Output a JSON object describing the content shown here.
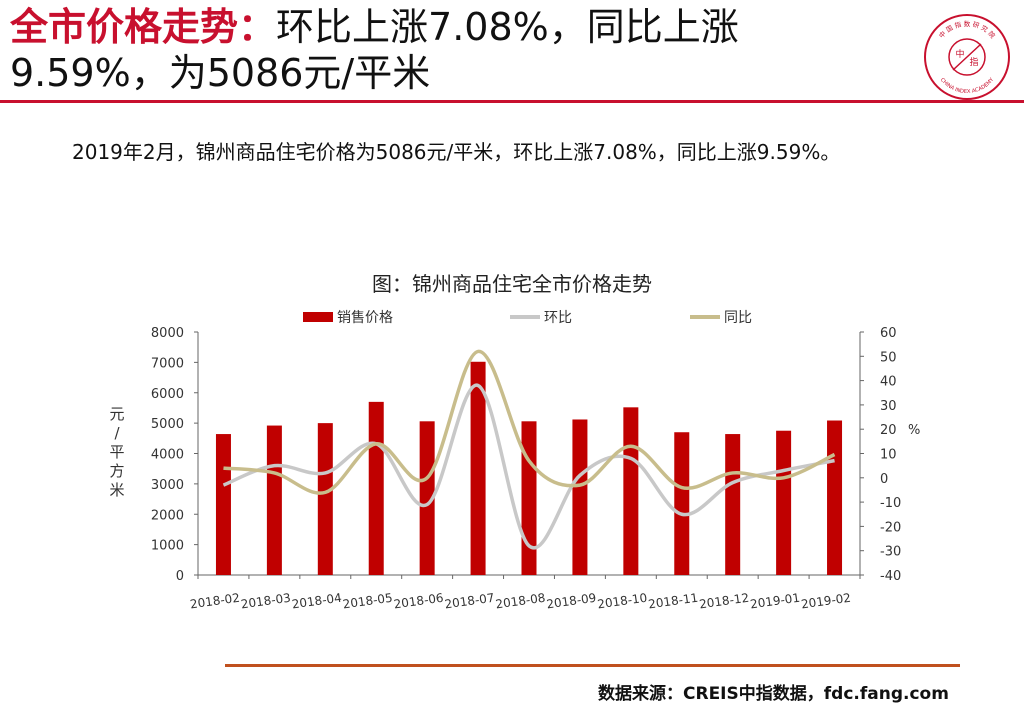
{
  "header": {
    "title_highlight": "全市价格走势：",
    "title_rest_line1": "环比上涨7.08%，同比上涨",
    "title_line2": "9.59%，为5086元/平米"
  },
  "logo": {
    "top_text": "中 国 指 数 研 究 院",
    "center_top": "中",
    "center_bottom": "指",
    "bottom_text": "CHINA INDEX ACADEMY"
  },
  "summary": "2019年2月，锦州商品住宅价格为5086元/平米，环比上涨7.08%，同比上涨9.59%。",
  "footer": {
    "source": "数据来源：CREIS中指数据，fdc.fang.com"
  },
  "colors": {
    "accent": "#c8102e",
    "bar": "#c00000",
    "mom": "#c8c8c8",
    "yoy": "#c8bd8c",
    "source_rule": "#c0501e"
  },
  "chart_data": {
    "type": "bar",
    "title": "图：锦州商品住宅全市价格走势",
    "categories": [
      "2018-02",
      "2018-03",
      "2018-04",
      "2018-05",
      "2018-06",
      "2018-07",
      "2018-08",
      "2018-09",
      "2018-10",
      "2018-11",
      "2018-12",
      "2019-01",
      "2019-02"
    ],
    "series": [
      {
        "name": "销售价格",
        "kind": "bar",
        "axis": "left",
        "values": [
          4640,
          4920,
          5000,
          5700,
          5060,
          7020,
          5060,
          5120,
          5520,
          4700,
          4640,
          4750,
          5086
        ]
      },
      {
        "name": "环比",
        "kind": "smooth-line",
        "axis": "right",
        "values": [
          -3,
          5,
          2,
          14,
          -11,
          38,
          -28,
          1,
          8,
          -15,
          -2,
          3,
          7.08
        ]
      },
      {
        "name": "同比",
        "kind": "smooth-line",
        "axis": "right",
        "values": [
          4,
          2,
          -6,
          14,
          0,
          52,
          7,
          -3,
          13,
          -4,
          2,
          0,
          9.59
        ]
      }
    ],
    "ylabel": "元/平方米",
    "ylim": [
      0,
      8000
    ],
    "yticks": [
      "0",
      "1000",
      "2000",
      "3000",
      "4000",
      "5000",
      "6000",
      "7000",
      "8000"
    ],
    "y2label": "%",
    "y2lim": [
      -40,
      60
    ],
    "y2ticks": [
      "-40",
      "-30",
      "-20",
      "-10",
      "0",
      "10",
      "20",
      "30",
      "40",
      "50",
      "60"
    ],
    "legend_position": "top",
    "grid": false
  }
}
